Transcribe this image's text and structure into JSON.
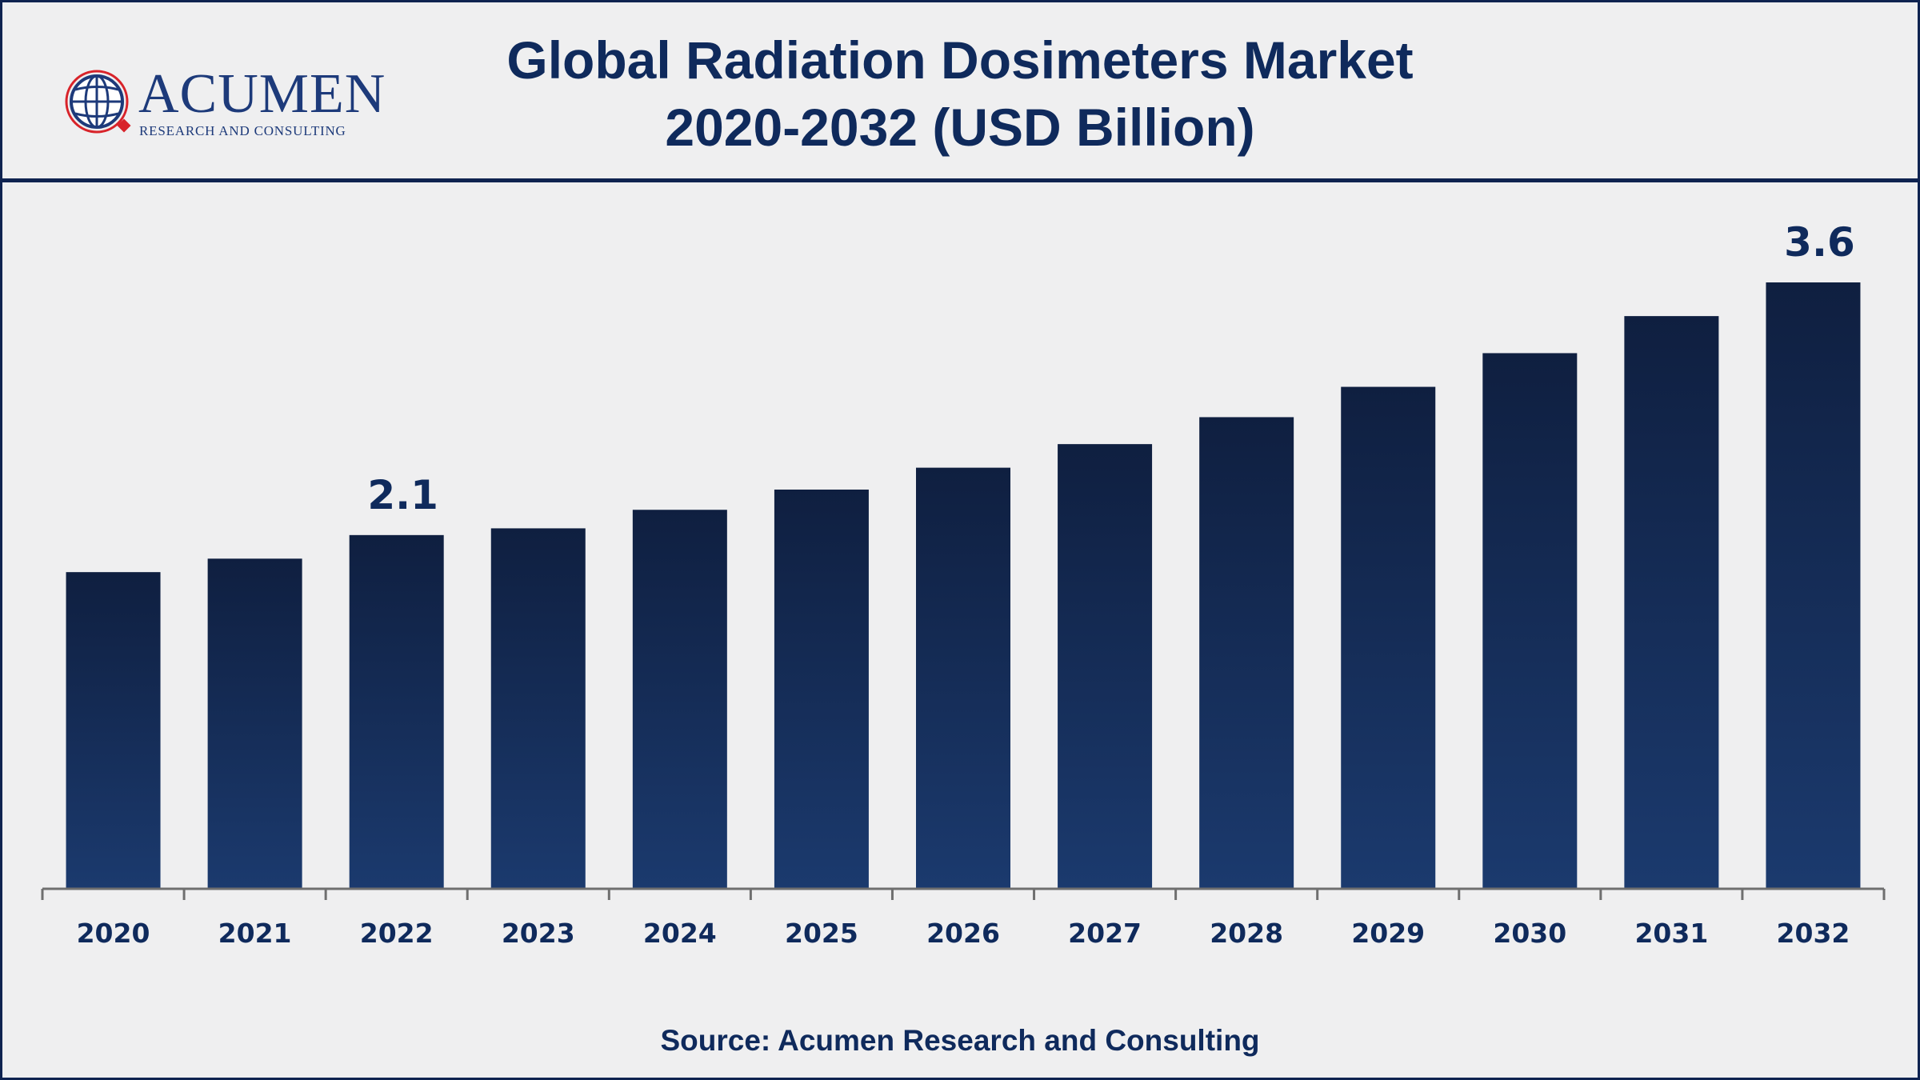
{
  "header": {
    "logo_name": "Acumen",
    "logo_tagline": "RESEARCH AND CONSULTING",
    "title_line1": "Global Radiation Dosimeters Market",
    "title_line2": "2020-2032 (USD Billion)"
  },
  "source": "Source: Acumen Research and Consulting",
  "colors": {
    "bar_top": "#0f1f40",
    "bar_bottom": "#1b3a6e",
    "text": "#0f2a5c",
    "axis": "#6f6f6f"
  },
  "chart_data": {
    "type": "bar",
    "categories": [
      "2020",
      "2021",
      "2022",
      "2023",
      "2024",
      "2025",
      "2026",
      "2027",
      "2028",
      "2029",
      "2030",
      "2031",
      "2032"
    ],
    "values": [
      1.88,
      1.96,
      2.1,
      2.14,
      2.25,
      2.37,
      2.5,
      2.64,
      2.8,
      2.98,
      3.18,
      3.4,
      3.6
    ],
    "data_labels": [
      {
        "category": "2022",
        "text": "2.1"
      },
      {
        "category": "2032",
        "text": "3.6"
      }
    ],
    "ylim": [
      0,
      3.98
    ],
    "grid": false,
    "legend": "none",
    "xlabel": "",
    "ylabel": ""
  }
}
